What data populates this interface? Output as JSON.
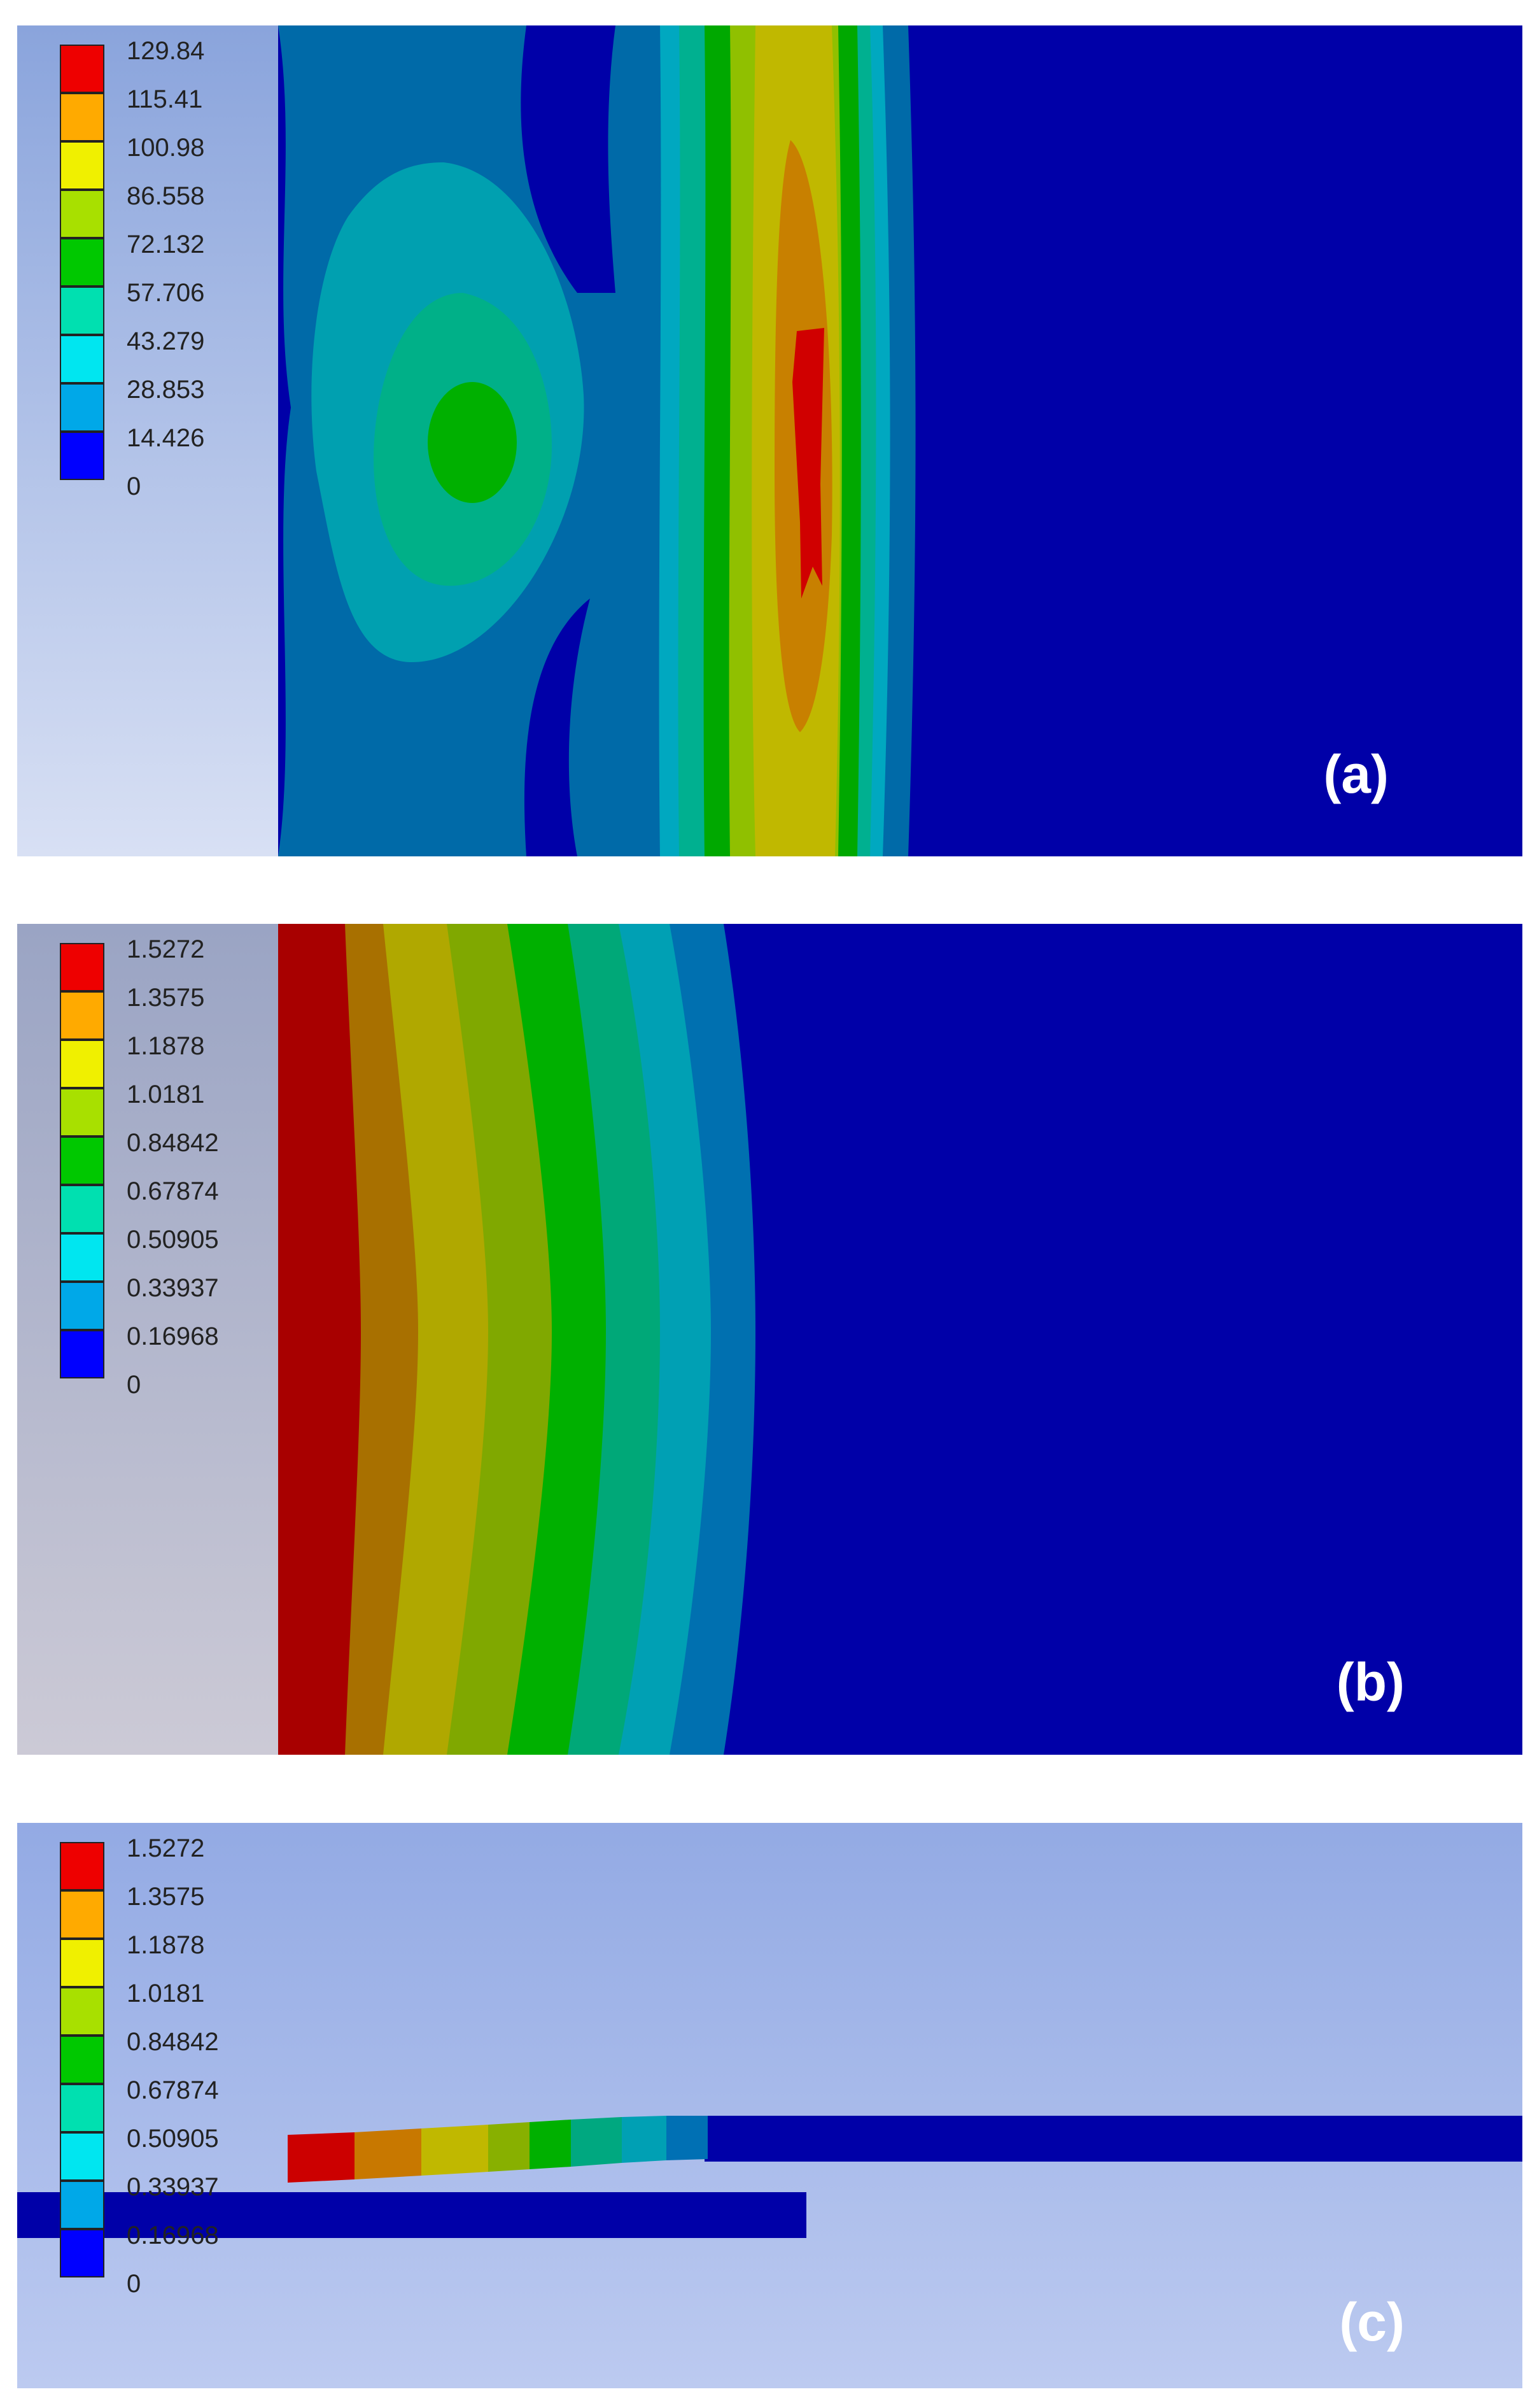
{
  "colors": {
    "contour_scale": [
      "#0000ff",
      "#00a8e8",
      "#00e6f0",
      "#00e0b0",
      "#00c800",
      "#a8e000",
      "#f0f000",
      "#ffaa00",
      "#ee0000"
    ],
    "field_background": "#0000a8"
  },
  "panels": [
    {
      "tag": "(a)",
      "legend": [
        "129.84",
        "115.41",
        "100.98",
        "86.558",
        "72.132",
        "57.706",
        "43.279",
        "28.853",
        "14.426",
        "0"
      ]
    },
    {
      "tag": "(b)",
      "legend": [
        "1.5272",
        "1.3575",
        "1.1878",
        "1.0181",
        "0.84842",
        "0.67874",
        "0.50905",
        "0.33937",
        "0.16968",
        "0"
      ]
    },
    {
      "tag": "(c)",
      "legend": [
        "1.5272",
        "1.3575",
        "1.1878",
        "1.0181",
        "0.84842",
        "0.67874",
        "0.50905",
        "0.33937",
        "0.16968",
        "0"
      ]
    }
  ]
}
